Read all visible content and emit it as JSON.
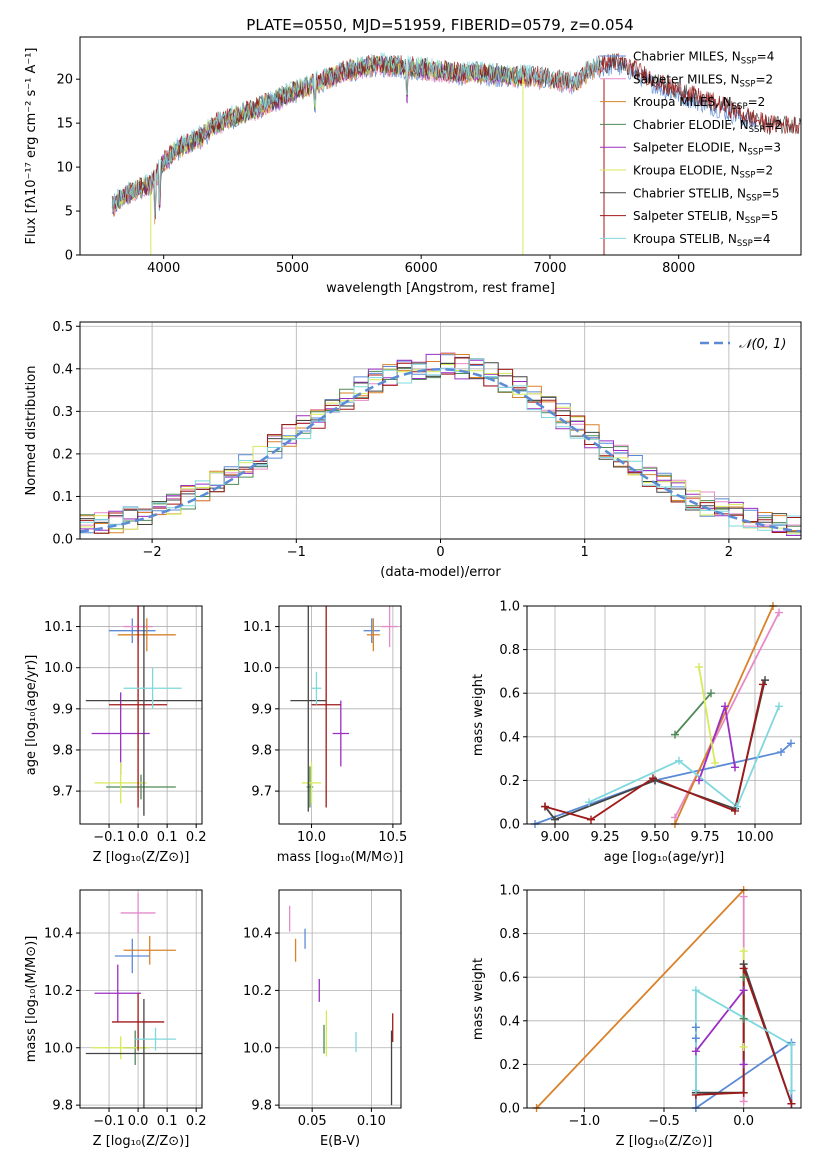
{
  "figure": {
    "title": "PLATE=0550, MJD=51959, FIBERID=0579, z=0.054"
  },
  "colors": {
    "grid": "#b0b0b0",
    "axis": "#000000",
    "norm_line": "#5b8bd6"
  },
  "chart_data": [
    {
      "id": "spectrum",
      "type": "line",
      "xlabel": "wavelength [Angstrom, rest frame]",
      "ylabel": "Flux [fλ10⁻¹⁷ erg cm⁻² s⁻¹ A⁻¹]",
      "xlim": [
        3350,
        8950
      ],
      "ylim": [
        0,
        24.8
      ],
      "xticks": [
        4000,
        5000,
        6000,
        7000,
        8000
      ],
      "yticks": [
        0,
        5,
        10,
        15,
        20
      ],
      "grid": false,
      "legend_position": "top-right",
      "continuum": {
        "x": [
          3600,
          3700,
          3800,
          3900,
          4000,
          4100,
          4200,
          4300,
          4400,
          4500,
          4600,
          4700,
          4800,
          4900,
          5000,
          5100,
          5200,
          5300,
          5400,
          5500,
          5600,
          5700,
          5800,
          5900,
          6000,
          6100,
          6200,
          6300,
          6400,
          6500,
          6600,
          6700,
          6800,
          6900,
          7000,
          7100,
          7200,
          7300,
          7400,
          7500,
          7600,
          7700,
          7800,
          7900,
          8000,
          8100,
          8200,
          8300,
          8400,
          8500,
          8600,
          8700
        ],
        "y": [
          5.5,
          6.8,
          7.5,
          8.0,
          10.5,
          12.0,
          12.8,
          13.5,
          14.8,
          15.5,
          16.0,
          16.5,
          17.2,
          17.8,
          18.5,
          19.0,
          19.6,
          20.2,
          20.8,
          21.2,
          21.5,
          21.6,
          21.5,
          21.3,
          21.2,
          21.0,
          20.8,
          20.6,
          20.8,
          20.6,
          20.5,
          20.3,
          20.3,
          20.2,
          20.0,
          19.8,
          19.6,
          21.0,
          21.5,
          21.8,
          21.4,
          20.6,
          19.8,
          19.0,
          18.5,
          18.0,
          17.5,
          17.0,
          16.4,
          15.8,
          15.2,
          14.6
        ]
      },
      "series": [
        {
          "name": "Chabrier MILES, N_SSP=4",
          "color": "#5b8bd6",
          "xmax": 8600
        },
        {
          "name": "Salpeter MILES, N_SSP=2",
          "color": "#e58bc8",
          "xmax": 7400
        },
        {
          "name": "Kroupa MILES, N_SSP=2",
          "color": "#d9822b",
          "xmax": 7400
        },
        {
          "name": "Chabrier ELODIE, N_SSP=2",
          "color": "#4e8a55",
          "xmax": 6800
        },
        {
          "name": "Salpeter ELODIE, N_SSP=3",
          "color": "#9b2fc4",
          "xmax": 6800
        },
        {
          "name": "Kroupa ELODIE, N_SSP=2",
          "color": "#d8ea5a",
          "xmax": 6800
        },
        {
          "name": "Chabrier STELIB, N_SSP=5",
          "color": "#444444",
          "xmax": 8950
        },
        {
          "name": "Salpeter STELIB, N_SSP=5",
          "color": "#a01818",
          "xmax": 8950
        },
        {
          "name": "Kroupa STELIB, N_SSP=4",
          "color": "#7fd8dd",
          "xmax": 7400
        }
      ]
    },
    {
      "id": "residuals",
      "type": "line",
      "xlabel": "(data-model)/error",
      "ylabel": "Normed distribution",
      "xlim": [
        -2.5,
        2.5
      ],
      "ylim": [
        0,
        0.51
      ],
      "xticks": [
        -2,
        -1,
        0,
        1,
        2
      ],
      "yticks": [
        0.0,
        0.1,
        0.2,
        0.3,
        0.4,
        0.5
      ],
      "grid": true,
      "legend_position": "top-right",
      "bin_width": 0.1,
      "series": [
        {
          "name": "𝒩(0, 1)",
          "type": "gaussian",
          "mu": 0,
          "sigma": 1,
          "style": "dashed"
        }
      ]
    },
    {
      "id": "age_vs_Z",
      "type": "scatter",
      "xlabel": "Z [log₁₀(Z/Z⊙)]",
      "ylabel": "age  [log₁₀(age/yr)]",
      "xlim": [
        -0.2,
        0.22
      ],
      "ylim": [
        9.62,
        10.15
      ],
      "xticks": [
        -0.1,
        0.0,
        0.1,
        0.2
      ],
      "xticklabels": [
        "−0.1",
        "0.0",
        "0.1",
        "0.2"
      ],
      "yticks": [
        9.7,
        9.8,
        9.9,
        10.0,
        10.1
      ],
      "grid": true,
      "points": [
        {
          "x": -0.02,
          "y": 10.09,
          "xerr": 0.08,
          "yerr": 0.03,
          "color": "#5b8bd6"
        },
        {
          "x": 0.0,
          "y": 10.1,
          "xerr": 0.05,
          "yerr": 0.045,
          "color": "#e58bc8"
        },
        {
          "x": 0.03,
          "y": 10.08,
          "xerr": 0.1,
          "yerr": 0.04,
          "color": "#d9822b"
        },
        {
          "x": 0.01,
          "y": 9.71,
          "xerr": 0.12,
          "yerr": 0.03,
          "color": "#4e8a55"
        },
        {
          "x": -0.06,
          "y": 9.84,
          "xerr": 0.1,
          "yerr": 0.1,
          "color": "#9b2fc4"
        },
        {
          "x": -0.06,
          "y": 9.72,
          "xerr": 0.09,
          "yerr": 0.05,
          "color": "#d8ea5a"
        },
        {
          "x": 0.02,
          "y": 9.92,
          "xerr": 0.2,
          "yerr": 0.28,
          "color": "#444444"
        },
        {
          "x": 0.0,
          "y": 9.91,
          "xerr": 0.1,
          "yerr": 0.25,
          "color": "#a01818"
        },
        {
          "x": 0.05,
          "y": 9.95,
          "xerr": 0.1,
          "yerr": 0.05,
          "color": "#7fd8dd"
        }
      ]
    },
    {
      "id": "age_vs_mass",
      "type": "scatter",
      "xlabel": "mass [log₁₀(M/M⊙)]",
      "ylabel": "",
      "xlim": [
        9.8,
        10.55
      ],
      "ylim": [
        9.62,
        10.15
      ],
      "xticks": [
        10.0,
        10.5
      ],
      "xticklabels": [
        "10.0",
        "10.5"
      ],
      "yticks": [
        9.7,
        9.8,
        9.9,
        10.0,
        10.1
      ],
      "grid": true,
      "points": [
        {
          "x": 10.37,
          "y": 10.09,
          "xerr": 0.05,
          "yerr": 0.03,
          "color": "#5b8bd6"
        },
        {
          "x": 10.48,
          "y": 10.1,
          "xerr": 0.05,
          "yerr": 0.05,
          "color": "#e58bc8"
        },
        {
          "x": 10.38,
          "y": 10.08,
          "xerr": 0.04,
          "yerr": 0.04,
          "color": "#d9822b"
        },
        {
          "x": 9.99,
          "y": 9.71,
          "xerr": 0.02,
          "yerr": 0.05,
          "color": "#4e8a55"
        },
        {
          "x": 10.18,
          "y": 9.84,
          "xerr": 0.05,
          "yerr": 0.08,
          "color": "#9b2fc4"
        },
        {
          "x": 10.0,
          "y": 9.72,
          "xerr": 0.06,
          "yerr": 0.05,
          "color": "#d8ea5a"
        },
        {
          "x": 9.98,
          "y": 9.92,
          "xerr": 0.11,
          "yerr": 0.27,
          "color": "#444444"
        },
        {
          "x": 10.09,
          "y": 9.91,
          "xerr": 0.09,
          "yerr": 0.25,
          "color": "#a01818"
        },
        {
          "x": 10.03,
          "y": 9.95,
          "xerr": 0.03,
          "yerr": 0.04,
          "color": "#7fd8dd"
        }
      ]
    },
    {
      "id": "weight_vs_age",
      "type": "line",
      "xlabel": "age  [log₁₀(age/yr)]",
      "ylabel": "mass weight",
      "xlim": [
        8.86,
        10.23
      ],
      "ylim": [
        0,
        1.0
      ],
      "xticks": [
        9.0,
        9.25,
        9.5,
        9.75,
        10.0
      ],
      "xticklabels": [
        "9.00",
        "9.25",
        "9.50",
        "9.75",
        "10.00"
      ],
      "yticks": [
        0.0,
        0.2,
        0.4,
        0.6,
        0.8,
        1.0
      ],
      "grid": true,
      "series": [
        {
          "color": "#5b8bd6",
          "x": [
            8.9,
            9.5,
            10.13,
            10.18
          ],
          "y": [
            0.0,
            0.2,
            0.33,
            0.37
          ]
        },
        {
          "color": "#e58bc8",
          "x": [
            9.6,
            10.12
          ],
          "y": [
            0.03,
            0.97
          ]
        },
        {
          "color": "#d9822b",
          "x": [
            9.6,
            10.09
          ],
          "y": [
            0.0,
            1.0
          ]
        },
        {
          "color": "#4e8a55",
          "x": [
            9.6,
            9.78
          ],
          "y": [
            0.41,
            0.6
          ]
        },
        {
          "color": "#9b2fc4",
          "x": [
            9.72,
            9.85,
            9.9
          ],
          "y": [
            0.2,
            0.54,
            0.26
          ]
        },
        {
          "color": "#d8ea5a",
          "x": [
            9.72,
            9.8
          ],
          "y": [
            0.72,
            0.28
          ]
        },
        {
          "color": "#444444",
          "x": [
            8.95,
            9.0,
            9.5,
            9.9,
            10.05
          ],
          "y": [
            0.08,
            0.02,
            0.2,
            0.07,
            0.66
          ]
        },
        {
          "color": "#a01818",
          "x": [
            8.95,
            9.18,
            9.49,
            9.9,
            10.04
          ],
          "y": [
            0.08,
            0.02,
            0.21,
            0.06,
            0.64
          ]
        },
        {
          "color": "#7fd8dd",
          "x": [
            9.17,
            9.62,
            9.91,
            10.12
          ],
          "y": [
            0.1,
            0.29,
            0.08,
            0.54
          ]
        }
      ]
    },
    {
      "id": "mass_vs_Z",
      "type": "scatter",
      "xlabel": "Z [log₁₀(Z/Z⊙)]",
      "ylabel": "mass [log₁₀(M/M⊙)]",
      "xlim": [
        -0.2,
        0.22
      ],
      "ylim": [
        9.79,
        10.55
      ],
      "xticks": [
        -0.1,
        0.0,
        0.1,
        0.2
      ],
      "xticklabels": [
        "−0.1",
        "0.0",
        "0.1",
        "0.2"
      ],
      "yticks": [
        9.8,
        10.0,
        10.2,
        10.4
      ],
      "grid": true,
      "points": [
        {
          "x": -0.02,
          "y": 10.32,
          "xerr": 0.06,
          "yerr": 0.06,
          "color": "#5b8bd6"
        },
        {
          "x": 0.0,
          "y": 10.47,
          "xerr": 0.06,
          "yerr": 0.07,
          "color": "#e58bc8"
        },
        {
          "x": 0.04,
          "y": 10.34,
          "xerr": 0.09,
          "yerr": 0.05,
          "color": "#d9822b"
        },
        {
          "x": -0.01,
          "y": 10.0,
          "xerr": 0.04,
          "yerr": 0.06,
          "color": "#4e8a55"
        },
        {
          "x": -0.07,
          "y": 10.19,
          "xerr": 0.08,
          "yerr": 0.1,
          "color": "#9b2fc4"
        },
        {
          "x": -0.06,
          "y": 10.0,
          "xerr": 0.1,
          "yerr": 0.04,
          "color": "#d8ea5a"
        },
        {
          "x": 0.02,
          "y": 9.98,
          "xerr": 0.2,
          "yerr": 0.19,
          "color": "#444444"
        },
        {
          "x": 0.0,
          "y": 10.09,
          "xerr": 0.09,
          "yerr": 0.1,
          "color": "#a01818"
        },
        {
          "x": 0.06,
          "y": 10.03,
          "xerr": 0.07,
          "yerr": 0.04,
          "color": "#7fd8dd"
        }
      ]
    },
    {
      "id": "mass_vs_ebv",
      "type": "scatter",
      "xlabel": "E(B-V)",
      "ylabel": "",
      "xlim": [
        0.022,
        0.125
      ],
      "ylim": [
        9.79,
        10.55
      ],
      "xticks": [
        0.05,
        0.1
      ],
      "xticklabels": [
        "0.05",
        "0.10"
      ],
      "yticks": [
        9.8,
        10.0,
        10.2,
        10.4
      ],
      "grid": true,
      "points": [
        {
          "x": 0.044,
          "y": 10.38,
          "xerr": 0,
          "yerr": 0.035,
          "color": "#5b8bd6"
        },
        {
          "x": 0.031,
          "y": 10.45,
          "xerr": 0,
          "yerr": 0.045,
          "color": "#e58bc8"
        },
        {
          "x": 0.036,
          "y": 10.34,
          "xerr": 0,
          "yerr": 0.04,
          "color": "#d9822b"
        },
        {
          "x": 0.06,
          "y": 10.03,
          "xerr": 0,
          "yerr": 0.05,
          "color": "#4e8a55"
        },
        {
          "x": 0.056,
          "y": 10.2,
          "xerr": 0,
          "yerr": 0.04,
          "color": "#9b2fc4"
        },
        {
          "x": 0.062,
          "y": 10.05,
          "xerr": 0,
          "yerr": 0.08,
          "color": "#d8ea5a"
        },
        {
          "x": 0.117,
          "y": 9.93,
          "xerr": 0,
          "yerr": 0.13,
          "color": "#444444"
        },
        {
          "x": 0.118,
          "y": 10.07,
          "xerr": 0,
          "yerr": 0.05,
          "color": "#a01818"
        },
        {
          "x": 0.087,
          "y": 10.02,
          "xerr": 0,
          "yerr": 0.035,
          "color": "#7fd8dd"
        }
      ]
    },
    {
      "id": "weight_vs_Z",
      "type": "line",
      "xlabel": "Z [log₁₀(Z/Z⊙)]",
      "ylabel": "mass weight",
      "xlim": [
        -1.36,
        0.36
      ],
      "ylim": [
        0,
        1.0
      ],
      "xticks": [
        -1.0,
        -0.5,
        0.0
      ],
      "xticklabels": [
        "−1.0",
        "−0.5",
        "0.0"
      ],
      "yticks": [
        0.0,
        0.2,
        0.4,
        0.6,
        0.8,
        1.0
      ],
      "grid": true,
      "series": [
        {
          "color": "#5b8bd6",
          "x": [
            -0.3,
            -0.3,
            -0.3,
            0.3,
            0.3
          ],
          "y": [
            0.37,
            0.32,
            0.0,
            0.3,
            0.02
          ]
        },
        {
          "color": "#e58bc8",
          "x": [
            0.0,
            0.0
          ],
          "y": [
            0.03,
            0.97
          ]
        },
        {
          "color": "#d9822b",
          "x": [
            -1.3,
            0.0
          ],
          "y": [
            0.0,
            1.0
          ]
        },
        {
          "color": "#4e8a55",
          "x": [
            0.0,
            0.0
          ],
          "y": [
            0.41,
            0.6
          ]
        },
        {
          "color": "#9b2fc4",
          "x": [
            -0.3,
            0.0,
            0.0
          ],
          "y": [
            0.26,
            0.54,
            0.2
          ]
        },
        {
          "color": "#d8ea5a",
          "x": [
            0.0,
            0.0
          ],
          "y": [
            0.72,
            0.28
          ]
        },
        {
          "color": "#444444",
          "x": [
            -0.3,
            0.0,
            0.0,
            0.3
          ],
          "y": [
            0.07,
            0.07,
            0.66,
            0.02
          ]
        },
        {
          "color": "#a01818",
          "x": [
            -0.3,
            0.0,
            0.0,
            0.3
          ],
          "y": [
            0.06,
            0.07,
            0.64,
            0.02
          ]
        },
        {
          "color": "#7fd8dd",
          "x": [
            -0.3,
            -0.3,
            0.3,
            0.3
          ],
          "y": [
            0.08,
            0.54,
            0.29,
            0.08
          ]
        }
      ]
    }
  ]
}
